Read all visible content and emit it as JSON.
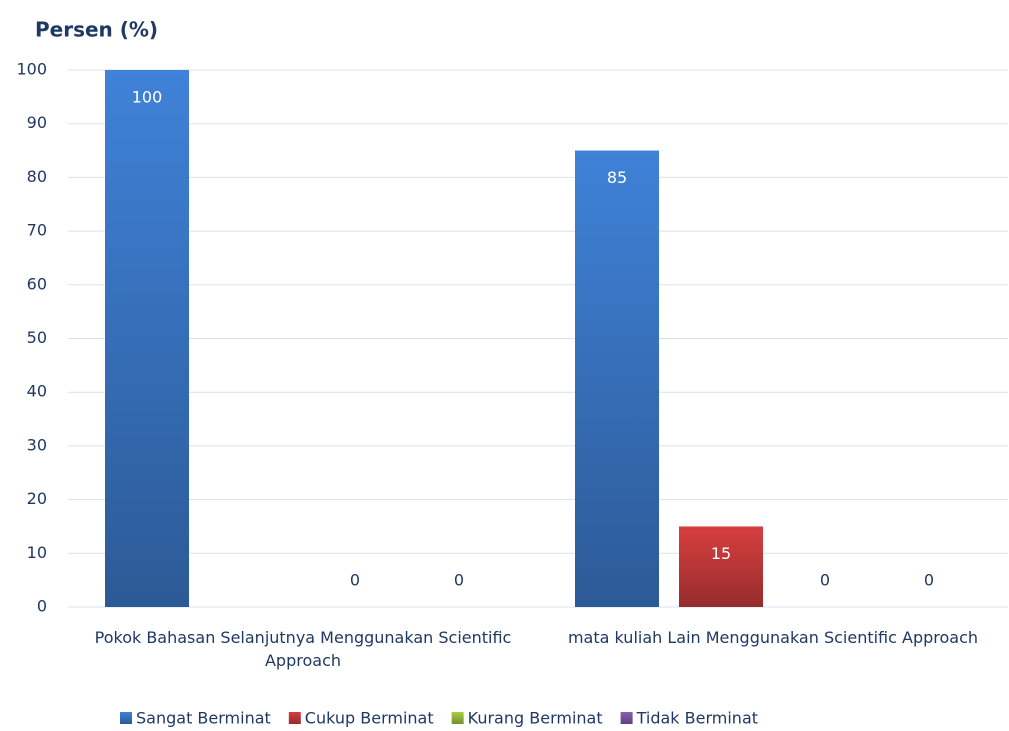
{
  "chart_data": {
    "type": "bar",
    "title": "Persen (%)",
    "categories": [
      "Pokok Bahasan Selanjutnya Menggunakan Scientific Approach",
      "mata kuliah Lain Menggunakan Scientific Approach"
    ],
    "series": [
      {
        "name": "Sangat Berminat",
        "color": "#3a78c8",
        "values": [
          100,
          85
        ]
      },
      {
        "name": "Cukup Berminat",
        "color": "#c83a3a",
        "values": [
          null,
          15
        ]
      },
      {
        "name": "Kurang Berminat",
        "color": "#9bc03c",
        "values": [
          0,
          0
        ]
      },
      {
        "name": "Tidak Berminat",
        "color": "#7e58a8",
        "values": [
          0,
          0
        ]
      }
    ],
    "ylim": [
      0,
      100
    ],
    "yticks": [
      0,
      10,
      20,
      30,
      40,
      50,
      60,
      70,
      80,
      90,
      100
    ],
    "grid": true,
    "legend": "bottom"
  }
}
